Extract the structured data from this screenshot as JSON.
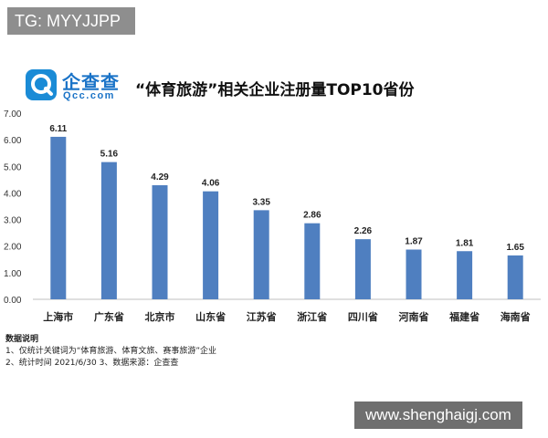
{
  "overlay_tag": "TG: MYYJJPP",
  "logo": {
    "cn": "企查查",
    "en": "Qcc.com"
  },
  "notes": {
    "title": "数据说明",
    "line1": "1、仅统计关键词为“体育旅游、体育文旅、赛事旅游”企业",
    "line2": "2、统计时间 2021/6/30    3、数据来源：企查查"
  },
  "watermark": "www.shenghaigj.com",
  "colors": {
    "bar": "#4f7fc0",
    "logo": "#1a8bd6"
  },
  "chart_data": {
    "type": "bar",
    "title": "“体育旅游”相关企业注册量TOP10省份",
    "categories": [
      "上海市",
      "广东省",
      "北京市",
      "山东省",
      "江苏省",
      "浙江省",
      "四川省",
      "河南省",
      "福建省",
      "海南省"
    ],
    "values": [
      6.11,
      5.16,
      4.29,
      4.06,
      3.35,
      2.86,
      2.26,
      1.87,
      1.81,
      1.65
    ],
    "value_labels": [
      "6.11",
      "5.16",
      "4.29",
      "4.06",
      "3.35",
      "2.86",
      "2.26",
      "1.87",
      "1.81",
      "1.65"
    ],
    "ylim": [
      0,
      7
    ],
    "yticks": [
      "0.00",
      "1.00",
      "2.00",
      "3.00",
      "4.00",
      "5.00",
      "6.00",
      "7.00"
    ],
    "grid": false,
    "legend": "none"
  }
}
